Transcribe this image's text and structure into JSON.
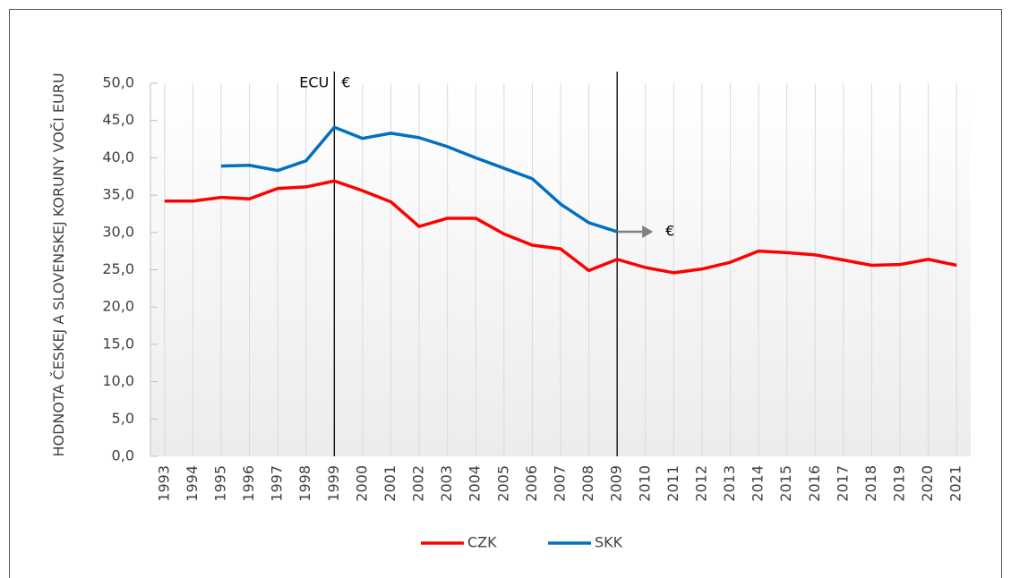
{
  "chart_data": {
    "type": "line",
    "y_label": "HODNOTA ČESKEJ A SLOVENSKEJ KORUNY VOČI EURU",
    "categories": [
      "1993",
      "1994",
      "1995",
      "1996",
      "1997",
      "1998",
      "1999",
      "2000",
      "2001",
      "2002",
      "2003",
      "2004",
      "2005",
      "2006",
      "2007",
      "2008",
      "2009",
      "2010",
      "2011",
      "2012",
      "2013",
      "2014",
      "2015",
      "2016",
      "2017",
      "2018",
      "2019",
      "2020",
      "2021"
    ],
    "series": [
      {
        "name": "CZK",
        "color": "#ff0000",
        "values": [
          34.2,
          34.2,
          34.7,
          34.5,
          35.9,
          36.1,
          36.9,
          35.6,
          34.1,
          30.8,
          31.9,
          31.9,
          29.8,
          28.3,
          27.8,
          24.9,
          26.4,
          25.3,
          24.6,
          25.1,
          26.0,
          27.5,
          27.3,
          27.0,
          26.3,
          25.6,
          25.7,
          26.4,
          25.6
        ]
      },
      {
        "name": "SKK",
        "color": "#0070c0",
        "values": [
          null,
          null,
          38.9,
          39.0,
          38.3,
          39.6,
          44.1,
          42.6,
          43.3,
          42.7,
          41.5,
          40.0,
          38.6,
          37.2,
          33.8,
          31.3,
          30.1,
          null,
          null,
          null,
          null,
          null,
          null,
          null,
          null,
          null,
          null,
          null,
          null
        ]
      }
    ],
    "ylim": [
      0,
      50
    ],
    "yticks": [
      {
        "value": 0,
        "label": "0,0"
      },
      {
        "value": 5,
        "label": "5,0"
      },
      {
        "value": 10,
        "label": "10,0"
      },
      {
        "value": 15,
        "label": "15,0"
      },
      {
        "value": 20,
        "label": "20,0"
      },
      {
        "value": 25,
        "label": "25,0"
      },
      {
        "value": 30,
        "label": "30,0"
      },
      {
        "value": 35,
        "label": "35,0"
      },
      {
        "value": 40,
        "label": "40,0"
      },
      {
        "value": 45,
        "label": "45,0"
      },
      {
        "value": 50,
        "label": "50,0"
      }
    ],
    "grid": "vertical",
    "legend": "bottom",
    "annotations": [
      {
        "at": "1999",
        "left": "ECU",
        "right": "€"
      },
      {
        "at": "2009",
        "arrow": "€"
      }
    ]
  }
}
